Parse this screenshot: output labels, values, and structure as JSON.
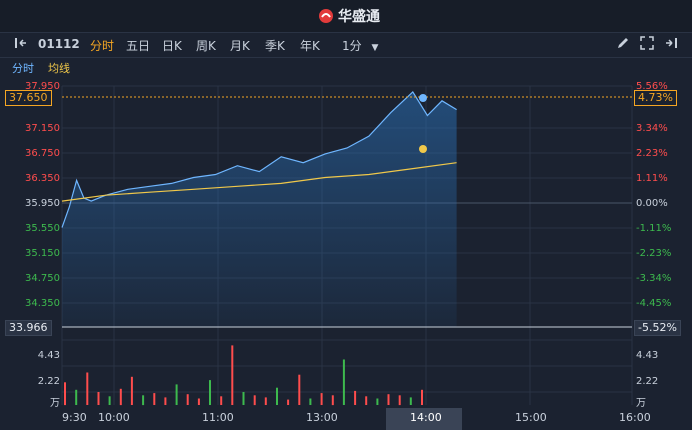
{
  "brand": {
    "name": "华盛通"
  },
  "toolbar": {
    "code": "01112",
    "tabs": [
      "分时",
      "五日",
      "日K",
      "周K",
      "月K",
      "季K",
      "年K"
    ],
    "active_tab": "分时",
    "interval": "1分"
  },
  "subtabs": {
    "time_label": "分时",
    "avg_label": "均线"
  },
  "colors": {
    "up": "#ff4d4d",
    "down": "#3dba4e",
    "neutral": "#c9d1dc",
    "accent": "#f5a623",
    "line": "#6fb6ff",
    "avg": "#f0c84a"
  },
  "price_axis": [
    "37.950",
    "37.150",
    "36.750",
    "36.350",
    "35.950",
    "35.550",
    "35.150",
    "34.750",
    "34.350"
  ],
  "pct_axis": [
    "5.56%",
    "3.34%",
    "2.23%",
    "1.11%",
    "0.00%",
    "-1.11%",
    "-2.23%",
    "-3.34%",
    "-4.45%"
  ],
  "current_price": "37.650",
  "current_pct": "4.73%",
  "low_price": "33.966",
  "low_pct": "-5.52%",
  "volume_axis": {
    "left": [
      "4.43",
      "2.22",
      "万"
    ],
    "right": [
      "4.43",
      "2.22",
      "万"
    ]
  },
  "time_axis": [
    "9:30",
    "10:00",
    "11:00",
    "13:00",
    "14:00",
    "15:00",
    "16:00"
  ],
  "chart_data": {
    "type": "line",
    "title": "",
    "series": [
      {
        "name": "分时",
        "x": [
          "09:30",
          "09:35",
          "09:40",
          "09:45",
          "09:50",
          "10:00",
          "10:15",
          "10:30",
          "10:45",
          "11:00",
          "11:15",
          "11:30",
          "11:45",
          "12:00",
          "12:15",
          "12:30",
          "12:45",
          "13:00",
          "13:15",
          "13:30",
          "13:40",
          "13:50",
          "14:00"
        ],
        "values": [
          35.65,
          36.0,
          36.45,
          36.15,
          36.1,
          36.2,
          36.3,
          36.35,
          36.4,
          36.5,
          36.55,
          36.7,
          36.6,
          36.85,
          36.75,
          36.9,
          37.0,
          37.2,
          37.6,
          37.95,
          37.55,
          37.8,
          37.65
        ]
      },
      {
        "name": "均线",
        "x": [
          "09:30",
          "10:00",
          "10:30",
          "11:00",
          "11:30",
          "12:00",
          "12:30",
          "13:00",
          "13:30",
          "14:00"
        ],
        "values": [
          36.1,
          36.2,
          36.25,
          36.3,
          36.35,
          36.4,
          36.5,
          36.55,
          36.65,
          36.75
        ]
      }
    ],
    "ylim": [
      33.966,
      38.05
    ],
    "volume": [
      2.1,
      1.4,
      3.0,
      1.2,
      0.8,
      1.5,
      2.6,
      0.9,
      1.1,
      0.7,
      1.9,
      1.0,
      0.6,
      2.3,
      0.8,
      5.5,
      1.2,
      0.9,
      0.7,
      1.6,
      0.5,
      2.8,
      0.6,
      1.1,
      0.9,
      4.2,
      1.3,
      0.8,
      0.6,
      1.0,
      0.9,
      0.7,
      1.4
    ]
  }
}
